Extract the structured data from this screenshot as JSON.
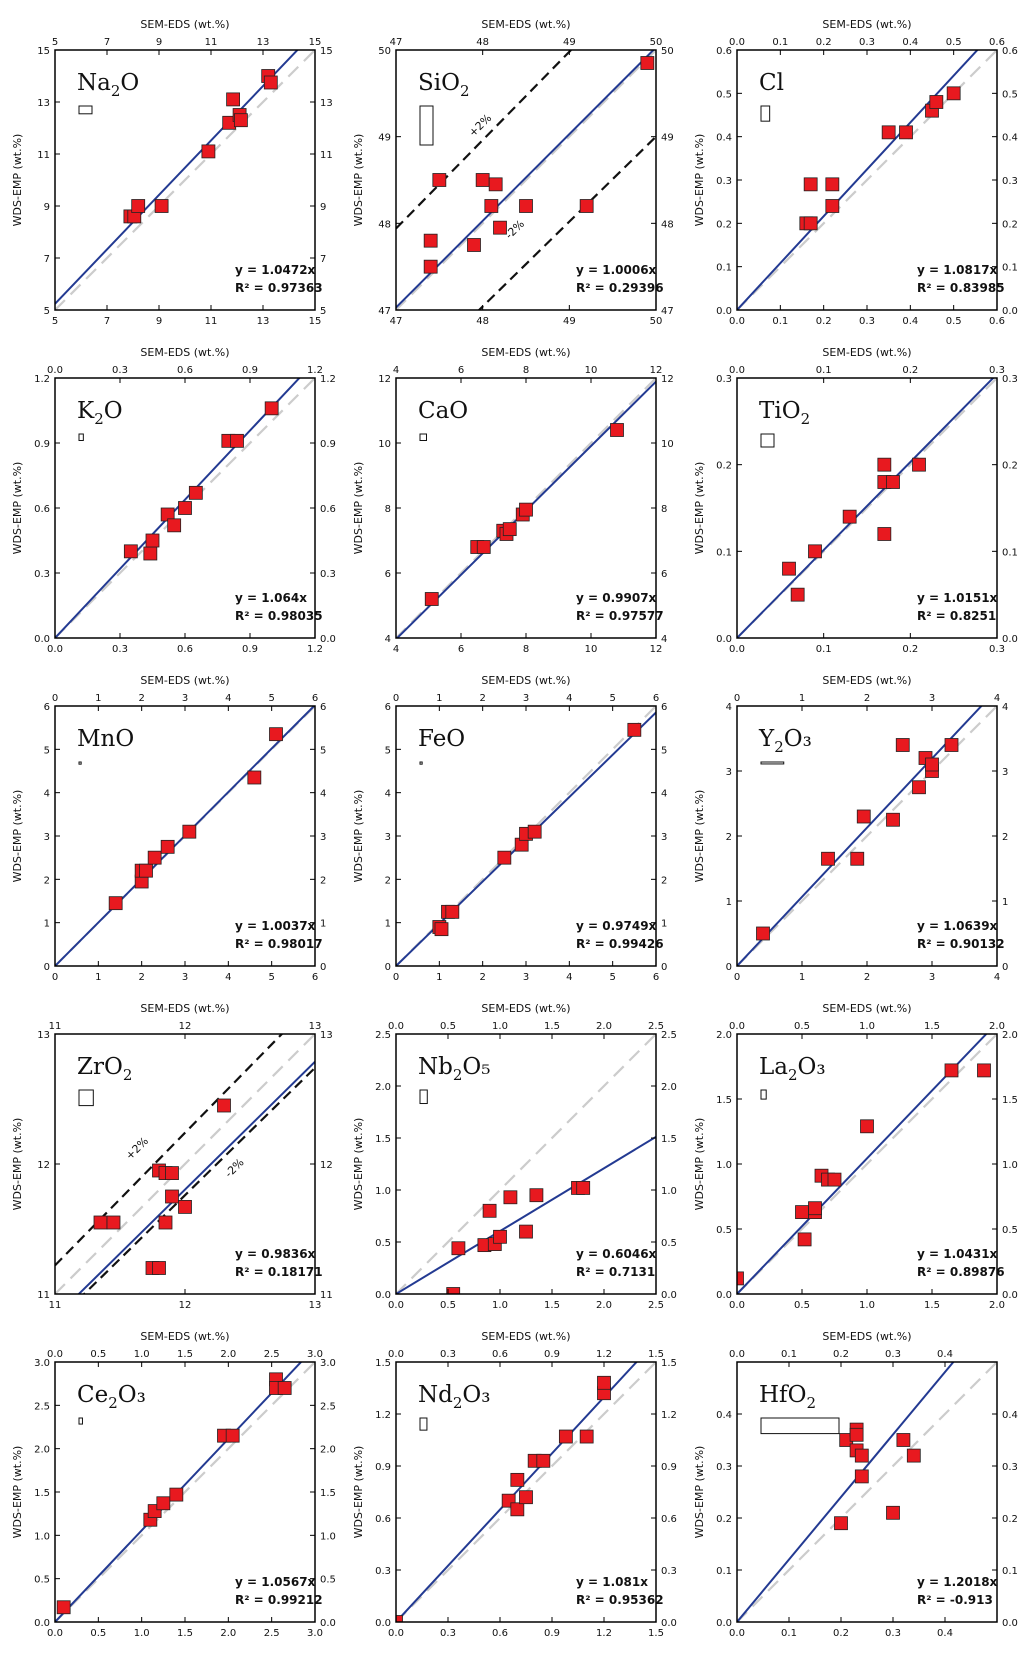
{
  "xlabel": "SEM-EDS (wt.%)",
  "ylabel": "WDS-EMP (wt.%)",
  "colors": {
    "point": "#e8191f",
    "fit": "#233a92",
    "one_to_one": "#cccccc",
    "bands": "#111111"
  },
  "chart_data": [
    {
      "type": "scatter",
      "oxide": "Na",
      "sub": "2",
      "suffix": "O",
      "equation": "y = 1.0472x",
      "r2": "R² = 0.97363",
      "xlim": [
        5,
        15
      ],
      "ylim": [
        5,
        15
      ],
      "ticks": [
        5,
        7,
        9,
        11,
        13,
        15
      ],
      "decimals": 0,
      "slope": 1.0472,
      "bands": [],
      "error_bar": [
        0.5,
        0.3
      ],
      "points": [
        [
          7.9,
          8.6
        ],
        [
          8.05,
          8.6
        ],
        [
          8.2,
          9.0
        ],
        [
          9.1,
          9.0
        ],
        [
          10.9,
          11.1
        ],
        [
          11.7,
          12.2
        ],
        [
          11.85,
          13.1
        ],
        [
          12.1,
          12.5
        ],
        [
          12.15,
          12.3
        ],
        [
          13.2,
          14.0
        ],
        [
          13.3,
          13.75
        ]
      ]
    },
    {
      "type": "scatter",
      "oxide": "SiO",
      "sub": "2",
      "suffix": "",
      "equation": "y = 1.0006x",
      "r2": "R² = 0.29396",
      "xlim": [
        47,
        50
      ],
      "ylim": [
        47,
        50
      ],
      "ticks": [
        47,
        48,
        49,
        50
      ],
      "decimals": 0,
      "slope": 1.0006,
      "bands": [
        {
          "factor": 1.02,
          "label": "+2%",
          "lx": 48.0,
          "ly": 49.1
        },
        {
          "factor": 0.98,
          "label": "-2%",
          "lx": 48.4,
          "ly": 47.9
        }
      ],
      "error_bar": [
        0.15,
        0.45
      ],
      "points": [
        [
          47.4,
          47.5
        ],
        [
          47.4,
          47.8
        ],
        [
          47.5,
          48.5
        ],
        [
          47.9,
          47.75
        ],
        [
          48.0,
          48.5
        ],
        [
          48.1,
          48.2
        ],
        [
          48.15,
          48.45
        ],
        [
          48.2,
          47.95
        ],
        [
          48.5,
          48.2
        ],
        [
          49.2,
          48.2
        ],
        [
          49.9,
          49.85
        ]
      ]
    },
    {
      "type": "scatter",
      "oxide": "Cl",
      "sub": "",
      "suffix": "",
      "equation": "y = 1.0817x",
      "r2": "R² = 0.83985",
      "xlim": [
        0,
        0.6
      ],
      "ylim": [
        0,
        0.6
      ],
      "ticks": [
        0,
        0.1,
        0.2,
        0.3,
        0.4,
        0.5,
        0.6
      ],
      "decimals": 1,
      "slope": 1.0817,
      "bands": [],
      "error_bar": [
        0.02,
        0.035
      ],
      "points": [
        [
          0.16,
          0.2
        ],
        [
          0.17,
          0.2
        ],
        [
          0.17,
          0.29
        ],
        [
          0.22,
          0.24
        ],
        [
          0.22,
          0.29
        ],
        [
          0.35,
          0.41
        ],
        [
          0.39,
          0.41
        ],
        [
          0.45,
          0.46
        ],
        [
          0.46,
          0.48
        ],
        [
          0.5,
          0.5
        ]
      ]
    },
    {
      "type": "scatter",
      "oxide": "K",
      "sub": "2",
      "suffix": "O",
      "equation": "y = 1.064x",
      "r2": "R² = 0.98035",
      "xlim": [
        0,
        1.2
      ],
      "ylim": [
        0,
        1.2
      ],
      "ticks": [
        0,
        0.3,
        0.6,
        0.9,
        1.2
      ],
      "decimals": 1,
      "slope": 1.064,
      "bands": [],
      "error_bar": [
        0.02,
        0.03
      ],
      "points": [
        [
          0.35,
          0.4
        ],
        [
          0.44,
          0.39
        ],
        [
          0.45,
          0.45
        ],
        [
          0.52,
          0.57
        ],
        [
          0.55,
          0.52
        ],
        [
          0.6,
          0.6
        ],
        [
          0.65,
          0.67
        ],
        [
          0.8,
          0.91
        ],
        [
          0.84,
          0.91
        ],
        [
          1.0,
          1.06
        ]
      ]
    },
    {
      "type": "scatter",
      "oxide": "CaO",
      "sub": "",
      "suffix": "",
      "equation": "y = 0.9907x",
      "r2": "R² = 0.97577",
      "xlim": [
        4,
        12
      ],
      "ylim": [
        4,
        12
      ],
      "ticks": [
        4,
        6,
        8,
        10,
        12
      ],
      "decimals": 0,
      "slope": 0.9907,
      "bands": [],
      "error_bar": [
        0.2,
        0.2
      ],
      "points": [
        [
          5.1,
          5.2
        ],
        [
          6.5,
          6.8
        ],
        [
          6.7,
          6.8
        ],
        [
          7.3,
          7.3
        ],
        [
          7.4,
          7.2
        ],
        [
          7.5,
          7.35
        ],
        [
          7.9,
          7.8
        ],
        [
          8.0,
          7.95
        ],
        [
          10.8,
          10.4
        ]
      ]
    },
    {
      "type": "scatter",
      "oxide": "TiO",
      "sub": "2",
      "suffix": "",
      "equation": "y = 1.0151x",
      "r2": "R² = 0.8251",
      "xlim": [
        0,
        0.3
      ],
      "ylim": [
        0,
        0.3
      ],
      "ticks": [
        0,
        0.1,
        0.2,
        0.3
      ],
      "decimals": 1,
      "slope": 1.0151,
      "bands": [],
      "error_bar": [
        0.015,
        0.015
      ],
      "points": [
        [
          0.06,
          0.08
        ],
        [
          0.07,
          0.05
        ],
        [
          0.09,
          0.1
        ],
        [
          0.13,
          0.14
        ],
        [
          0.17,
          0.2
        ],
        [
          0.17,
          0.18
        ],
        [
          0.17,
          0.12
        ],
        [
          0.18,
          0.18
        ],
        [
          0.21,
          0.2
        ]
      ]
    },
    {
      "type": "scatter",
      "oxide": "MnO",
      "sub": "",
      "suffix": "",
      "equation": "y = 1.0037x",
      "r2": "R² = 0.98017",
      "xlim": [
        0,
        6
      ],
      "ylim": [
        0,
        6
      ],
      "ticks": [
        0,
        1,
        2,
        3,
        4,
        5,
        6
      ],
      "decimals": 0,
      "slope": 1.0037,
      "bands": [],
      "error_bar": [
        0.05,
        0.05
      ],
      "points": [
        [
          1.4,
          1.45
        ],
        [
          2.0,
          1.95
        ],
        [
          2.0,
          2.2
        ],
        [
          2.1,
          2.2
        ],
        [
          2.3,
          2.5
        ],
        [
          2.6,
          2.75
        ],
        [
          3.1,
          3.1
        ],
        [
          4.6,
          4.35
        ],
        [
          5.1,
          5.35
        ]
      ]
    },
    {
      "type": "scatter",
      "oxide": "FeO",
      "sub": "",
      "suffix": "",
      "equation": "y = 0.9749x",
      "r2": "R² = 0.99426",
      "xlim": [
        0,
        6
      ],
      "ylim": [
        0,
        6
      ],
      "ticks": [
        0,
        1,
        2,
        3,
        4,
        5,
        6
      ],
      "decimals": 0,
      "slope": 0.9749,
      "bands": [],
      "error_bar": [
        0.05,
        0.05
      ],
      "points": [
        [
          1.0,
          0.9
        ],
        [
          1.05,
          0.85
        ],
        [
          1.2,
          1.25
        ],
        [
          1.3,
          1.25
        ],
        [
          2.5,
          2.5
        ],
        [
          2.9,
          2.8
        ],
        [
          3.0,
          3.05
        ],
        [
          3.2,
          3.1
        ],
        [
          5.5,
          5.45
        ]
      ]
    },
    {
      "type": "scatter",
      "oxide": "Y",
      "sub": "2",
      "suffix": "O₃",
      "equation": "y = 1.0639x",
      "r2": "R² = 0.90132",
      "xlim": [
        0,
        4
      ],
      "ylim": [
        0,
        4
      ],
      "ticks": [
        0,
        1,
        2,
        3,
        4
      ],
      "decimals": 0,
      "slope": 1.0639,
      "bands": [],
      "error_bar": [
        0.35,
        0.03
      ],
      "points": [
        [
          0.4,
          0.5
        ],
        [
          1.4,
          1.65
        ],
        [
          1.85,
          1.65
        ],
        [
          1.95,
          2.3
        ],
        [
          2.4,
          2.25
        ],
        [
          2.55,
          3.4
        ],
        [
          2.8,
          2.75
        ],
        [
          2.9,
          3.2
        ],
        [
          3.0,
          3.0
        ],
        [
          3.0,
          3.1
        ],
        [
          3.3,
          3.4
        ]
      ]
    },
    {
      "type": "scatter",
      "oxide": "ZrO",
      "sub": "2",
      "suffix": "",
      "equation": "y = 0.9836x",
      "r2": "R² = 0.18171",
      "xlim": [
        11,
        13
      ],
      "ylim": [
        11,
        13
      ],
      "ticks": [
        11,
        12,
        13
      ],
      "decimals": 0,
      "slope": 0.9836,
      "bands": [
        {
          "factor": 1.02,
          "label": "+2%",
          "lx": 11.65,
          "ly": 12.1
        },
        {
          "factor": 0.98,
          "label": "-2%",
          "lx": 12.4,
          "ly": 11.95
        }
      ],
      "error_bar": [
        0.11,
        0.12
      ],
      "points": [
        [
          11.35,
          11.55
        ],
        [
          11.45,
          11.55
        ],
        [
          11.75,
          11.2
        ],
        [
          11.8,
          11.2
        ],
        [
          11.8,
          11.95
        ],
        [
          11.85,
          11.55
        ],
        [
          11.85,
          11.93
        ],
        [
          11.9,
          11.93
        ],
        [
          11.9,
          11.75
        ],
        [
          12.0,
          11.67
        ],
        [
          12.3,
          12.45
        ]
      ]
    },
    {
      "type": "scatter",
      "oxide": "Nb",
      "sub": "2",
      "suffix": "O₅",
      "equation": "y = 0.6046x",
      "r2": "R² = 0.7131",
      "xlim": [
        0,
        2.5
      ],
      "ylim": [
        0,
        2.5
      ],
      "ticks": [
        0,
        0.5,
        1.0,
        1.5,
        2.0,
        2.5
      ],
      "decimals": 1,
      "slope": 0.6046,
      "bands": [],
      "error_bar": [
        0.07,
        0.13
      ],
      "points": [
        [
          0.55,
          0.0
        ],
        [
          0.6,
          0.44
        ],
        [
          0.85,
          0.47
        ],
        [
          0.9,
          0.8
        ],
        [
          0.95,
          0.48
        ],
        [
          1.0,
          0.55
        ],
        [
          1.1,
          0.93
        ],
        [
          1.25,
          0.6
        ],
        [
          1.35,
          0.95
        ],
        [
          1.75,
          1.02
        ],
        [
          1.8,
          1.02
        ]
      ]
    },
    {
      "type": "scatter",
      "oxide": "La",
      "sub": "2",
      "suffix": "O₃",
      "equation": "y = 1.0431x",
      "r2": "R² = 0.89876",
      "xlim": [
        0,
        2.0
      ],
      "ylim": [
        0,
        2.0
      ],
      "ticks": [
        0,
        0.5,
        1.0,
        1.5,
        2.0
      ],
      "decimals": 1,
      "slope": 1.0431,
      "bands": [],
      "error_bar": [
        0.04,
        0.07
      ],
      "points": [
        [
          0.0,
          0.12
        ],
        [
          0.5,
          0.63
        ],
        [
          0.52,
          0.42
        ],
        [
          0.6,
          0.63
        ],
        [
          0.6,
          0.66
        ],
        [
          0.65,
          0.91
        ],
        [
          0.7,
          0.88
        ],
        [
          0.75,
          0.88
        ],
        [
          1.0,
          1.29
        ],
        [
          1.65,
          1.72
        ],
        [
          1.9,
          1.72
        ]
      ]
    },
    {
      "type": "scatter",
      "oxide": "Ce",
      "sub": "2",
      "suffix": "O₃",
      "equation": "y = 1.0567x",
      "r2": "R² = 0.99212",
      "xlim": [
        0,
        3.0
      ],
      "ylim": [
        0,
        3.0
      ],
      "ticks": [
        0,
        0.5,
        1.0,
        1.5,
        2.0,
        2.5,
        3.0
      ],
      "decimals": 1,
      "slope": 1.0567,
      "bands": [],
      "error_bar": [
        0.04,
        0.07
      ],
      "points": [
        [
          0.1,
          0.17
        ],
        [
          1.1,
          1.18
        ],
        [
          1.15,
          1.28
        ],
        [
          1.25,
          1.37
        ],
        [
          1.4,
          1.47
        ],
        [
          1.95,
          2.15
        ],
        [
          2.05,
          2.15
        ],
        [
          2.55,
          2.8
        ],
        [
          2.55,
          2.7
        ],
        [
          2.65,
          2.7
        ]
      ]
    },
    {
      "type": "scatter",
      "oxide": "Nd",
      "sub": "2",
      "suffix": "O₃",
      "equation": "y = 1.081x",
      "r2": "R² = 0.95362",
      "xlim": [
        0,
        1.5
      ],
      "ylim": [
        0,
        1.5
      ],
      "ticks": [
        0,
        0.3,
        0.6,
        0.9,
        1.2,
        1.5
      ],
      "decimals": 1,
      "slope": 1.081,
      "bands": [],
      "error_bar": [
        0.04,
        0.07
      ],
      "points": [
        [
          0.0,
          0.0
        ],
        [
          0.65,
          0.7
        ],
        [
          0.7,
          0.65
        ],
        [
          0.7,
          0.82
        ],
        [
          0.75,
          0.72
        ],
        [
          0.8,
          0.93
        ],
        [
          0.85,
          0.93
        ],
        [
          0.98,
          1.07
        ],
        [
          1.1,
          1.07
        ],
        [
          1.2,
          1.32
        ],
        [
          1.2,
          1.38
        ]
      ]
    },
    {
      "type": "scatter",
      "oxide": "HfO",
      "sub": "2",
      "suffix": "",
      "equation": "y = 1.2018x",
      "r2": "R² = -0.913",
      "xlim": [
        0,
        0.5
      ],
      "ylim": [
        0,
        0.5
      ],
      "ticks": [
        0,
        0.1,
        0.2,
        0.3,
        0.4
      ],
      "decimals": 1,
      "slope": 1.2018,
      "bands": [],
      "error_bar": [
        0.15,
        0.03
      ],
      "points": [
        [
          0.2,
          0.19
        ],
        [
          0.21,
          0.35
        ],
        [
          0.23,
          0.37
        ],
        [
          0.23,
          0.33
        ],
        [
          0.24,
          0.28
        ],
        [
          0.24,
          0.32
        ],
        [
          0.23,
          0.36
        ],
        [
          0.3,
          0.21
        ],
        [
          0.32,
          0.35
        ],
        [
          0.34,
          0.32
        ]
      ]
    }
  ]
}
